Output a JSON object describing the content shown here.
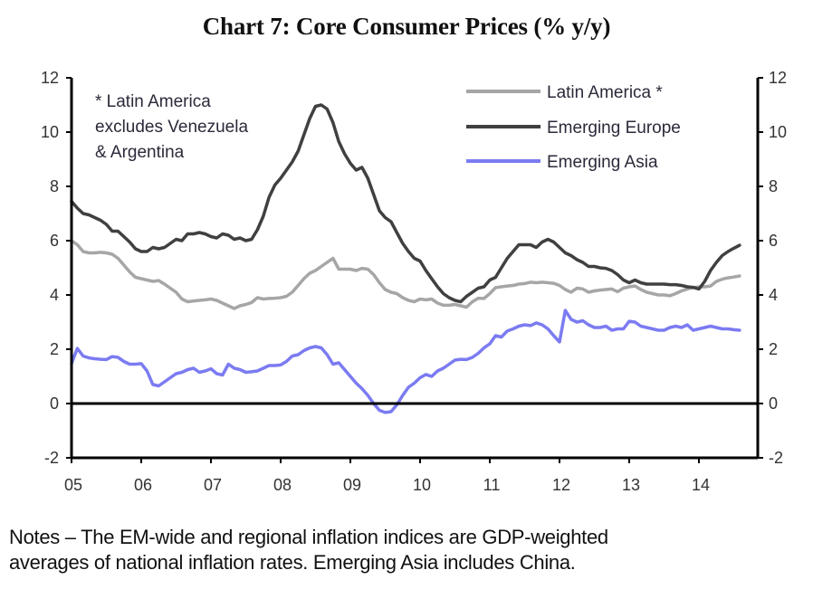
{
  "chart_data": {
    "type": "line",
    "title": "Chart 7: Core Consumer Prices (% y/y)",
    "xlabel": "",
    "ylabel": "",
    "ylabel_right": "",
    "x_start": "2005-01",
    "x_frequency": "monthly",
    "xlim": [
      2005.0,
      2014.75
    ],
    "ylim": [
      -2,
      12
    ],
    "yticks": [
      -2,
      0,
      2,
      4,
      6,
      8,
      10,
      12
    ],
    "ytick_labels": [
      "-2",
      "0",
      "2",
      "4",
      "6",
      "8",
      "10",
      "12"
    ],
    "xticks": [
      2005,
      2006,
      2007,
      2008,
      2009,
      2010,
      2011,
      2012,
      2013,
      2014
    ],
    "xtick_labels": [
      "05",
      "06",
      "07",
      "08",
      "09",
      "10",
      "11",
      "12",
      "13",
      "14"
    ],
    "grid": false,
    "zero_line": true,
    "dual_axis": true,
    "legend_position": "top-right",
    "annotation": [
      "* Latin America",
      "excludes Venezuela",
      "& Argentina"
    ],
    "series": [
      {
        "name": "Latin America *",
        "color": "#a6a6a6",
        "values": [
          6.0,
          5.85,
          5.6,
          5.55,
          5.55,
          5.57,
          5.55,
          5.5,
          5.35,
          5.1,
          4.85,
          4.65,
          4.6,
          4.55,
          4.5,
          4.53,
          4.4,
          4.25,
          4.1,
          3.85,
          3.75,
          3.78,
          3.8,
          3.82,
          3.85,
          3.8,
          3.7,
          3.6,
          3.5,
          3.6,
          3.65,
          3.72,
          3.9,
          3.85,
          3.87,
          3.88,
          3.9,
          3.95,
          4.1,
          4.35,
          4.6,
          4.8,
          4.9,
          5.05,
          5.2,
          5.35,
          4.95,
          4.95,
          4.95,
          4.9,
          4.98,
          4.95,
          4.75,
          4.45,
          4.2,
          4.1,
          4.05,
          3.9,
          3.8,
          3.75,
          3.85,
          3.82,
          3.85,
          3.7,
          3.62,
          3.62,
          3.65,
          3.6,
          3.55,
          3.75,
          3.88,
          3.87,
          4.05,
          4.27,
          4.3,
          4.33,
          4.35,
          4.4,
          4.42,
          4.47,
          4.45,
          4.47,
          4.45,
          4.43,
          4.35,
          4.2,
          4.1,
          4.25,
          4.22,
          4.1,
          4.15,
          4.18,
          4.2,
          4.22,
          4.12,
          4.25,
          4.3,
          4.33,
          4.2,
          4.1,
          4.05,
          4.0,
          4.0,
          3.97,
          4.05,
          4.15,
          4.22,
          4.27,
          4.3,
          4.3,
          4.33,
          4.5,
          4.58,
          4.63,
          4.66,
          4.7
        ]
      },
      {
        "name": "Emerging Europe",
        "color": "#404040",
        "values": [
          7.45,
          7.2,
          7.0,
          6.95,
          6.85,
          6.75,
          6.6,
          6.35,
          6.35,
          6.15,
          5.95,
          5.7,
          5.6,
          5.6,
          5.75,
          5.7,
          5.75,
          5.9,
          6.05,
          6.0,
          6.25,
          6.25,
          6.3,
          6.25,
          6.15,
          6.1,
          6.25,
          6.2,
          6.05,
          6.1,
          6.0,
          6.05,
          6.4,
          6.9,
          7.6,
          8.05,
          8.3,
          8.6,
          8.9,
          9.3,
          9.9,
          10.5,
          10.95,
          11.0,
          10.85,
          10.35,
          9.65,
          9.2,
          8.85,
          8.6,
          8.7,
          8.3,
          7.7,
          7.1,
          6.85,
          6.7,
          6.3,
          5.9,
          5.6,
          5.35,
          5.25,
          4.9,
          4.6,
          4.3,
          4.05,
          3.9,
          3.8,
          3.75,
          3.95,
          4.1,
          4.25,
          4.3,
          4.55,
          4.65,
          5.0,
          5.35,
          5.6,
          5.85,
          5.85,
          5.85,
          5.75,
          5.95,
          6.05,
          5.95,
          5.75,
          5.55,
          5.45,
          5.3,
          5.2,
          5.05,
          5.05,
          5.0,
          4.98,
          4.9,
          4.75,
          4.55,
          4.45,
          4.55,
          4.45,
          4.4,
          4.4,
          4.4,
          4.4,
          4.38,
          4.38,
          4.35,
          4.3,
          4.28,
          4.22,
          4.5,
          4.9,
          5.2,
          5.45,
          5.6,
          5.72,
          5.83
        ]
      },
      {
        "name": "Emerging Asia",
        "color": "#7b7bf2",
        "values": [
          1.47,
          2.03,
          1.75,
          1.68,
          1.65,
          1.63,
          1.62,
          1.73,
          1.7,
          1.55,
          1.45,
          1.45,
          1.47,
          1.2,
          0.7,
          0.65,
          0.8,
          0.95,
          1.1,
          1.15,
          1.25,
          1.3,
          1.15,
          1.2,
          1.28,
          1.1,
          1.05,
          1.45,
          1.3,
          1.25,
          1.15,
          1.17,
          1.2,
          1.3,
          1.4,
          1.4,
          1.42,
          1.55,
          1.75,
          1.8,
          1.95,
          2.05,
          2.1,
          2.05,
          1.8,
          1.45,
          1.5,
          1.25,
          1.0,
          0.75,
          0.55,
          0.3,
          0.0,
          -0.25,
          -0.33,
          -0.3,
          -0.05,
          0.3,
          0.6,
          0.75,
          0.95,
          1.07,
          1.0,
          1.2,
          1.3,
          1.45,
          1.6,
          1.63,
          1.62,
          1.7,
          1.85,
          2.05,
          2.2,
          2.5,
          2.45,
          2.67,
          2.75,
          2.85,
          2.9,
          2.87,
          2.97,
          2.9,
          2.75,
          2.5,
          2.27,
          3.43,
          3.1,
          3.0,
          3.05,
          2.9,
          2.8,
          2.8,
          2.85,
          2.7,
          2.75,
          2.75,
          3.03,
          3.0,
          2.85,
          2.8,
          2.75,
          2.7,
          2.7,
          2.8,
          2.85,
          2.8,
          2.9,
          2.7,
          2.75,
          2.8,
          2.85,
          2.8,
          2.75,
          2.75,
          2.72,
          2.7
        ]
      }
    ]
  },
  "notes": {
    "line1": "Notes – The EM-wide and regional inflation indices are GDP-weighted",
    "line2": "averages of national inflation rates. Emerging Asia includes China."
  }
}
